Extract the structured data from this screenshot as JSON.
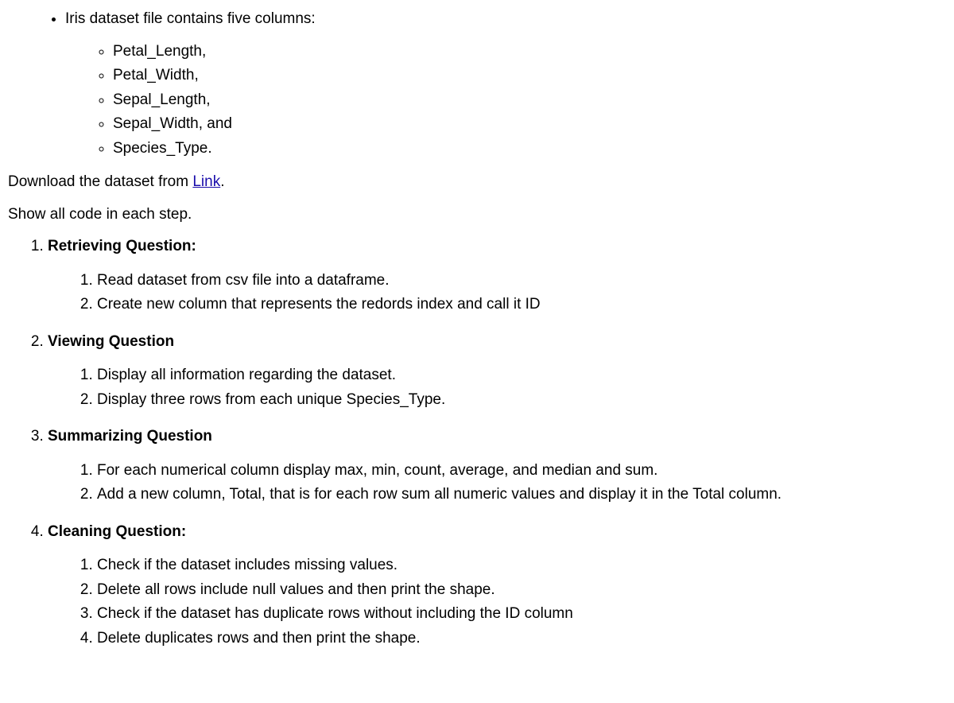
{
  "intro": {
    "bullet1": "Iris dataset file contains five columns:",
    "columns": [
      "Petal_Length,",
      "Petal_Width,",
      "Sepal_Length,",
      "Sepal_Width, and",
      "Species_Type."
    ]
  },
  "download": {
    "prefix": "Download the dataset from ",
    "link_text": "Link",
    "suffix": "."
  },
  "show_code": "Show all code in each step.",
  "sections": [
    {
      "title": "Retrieving Question:",
      "items": [
        "Read dataset from csv file into a dataframe.",
        "Create new column that represents the redords index and call it ID"
      ]
    },
    {
      "title": "Viewing Question",
      "items": [
        "Display all information regarding the dataset.",
        "Display three rows from each unique Species_Type."
      ]
    },
    {
      "title": "Summarizing Question",
      "items": [
        "For each numerical column display max, min, count, average, and median and sum.",
        "Add a new column, Total, that is for each row sum all numeric values and display it in the Total column."
      ]
    },
    {
      "title": "Cleaning Question:",
      "items": [
        "Check if the dataset includes missing values.",
        "Delete all rows include null values and then print the shape.",
        "Check if the dataset has duplicate rows without including the ID column",
        "Delete duplicates rows and then print the shape."
      ]
    }
  ]
}
